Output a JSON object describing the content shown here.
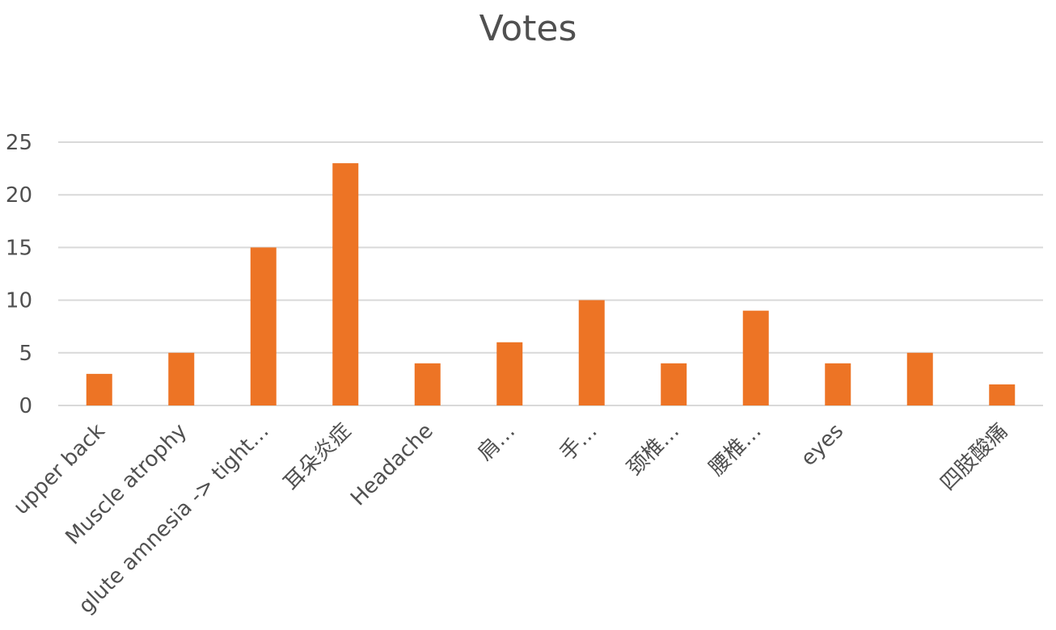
{
  "chart_data": {
    "type": "bar",
    "title": "Votes",
    "xlabel": "",
    "ylabel": "",
    "categories": [
      "upper back",
      "Muscle atrophy",
      "glute amnesia -> tight…",
      "耳朵炎症",
      "Headache",
      "肩…",
      "手…",
      "颈椎…",
      "腰椎…",
      "eyes",
      "",
      "四肢酸痛"
    ],
    "values": [
      3,
      5,
      15,
      23,
      4,
      6,
      10,
      4,
      9,
      4,
      5,
      2
    ],
    "ylim": [
      0,
      25
    ],
    "yticks": [
      "0",
      "5",
      "10",
      "15",
      "20",
      "25"
    ],
    "grid": true,
    "legend": "none",
    "colors": {
      "bar": "#ED7425",
      "grid": "#D9D9D9",
      "text": "#505050"
    }
  }
}
